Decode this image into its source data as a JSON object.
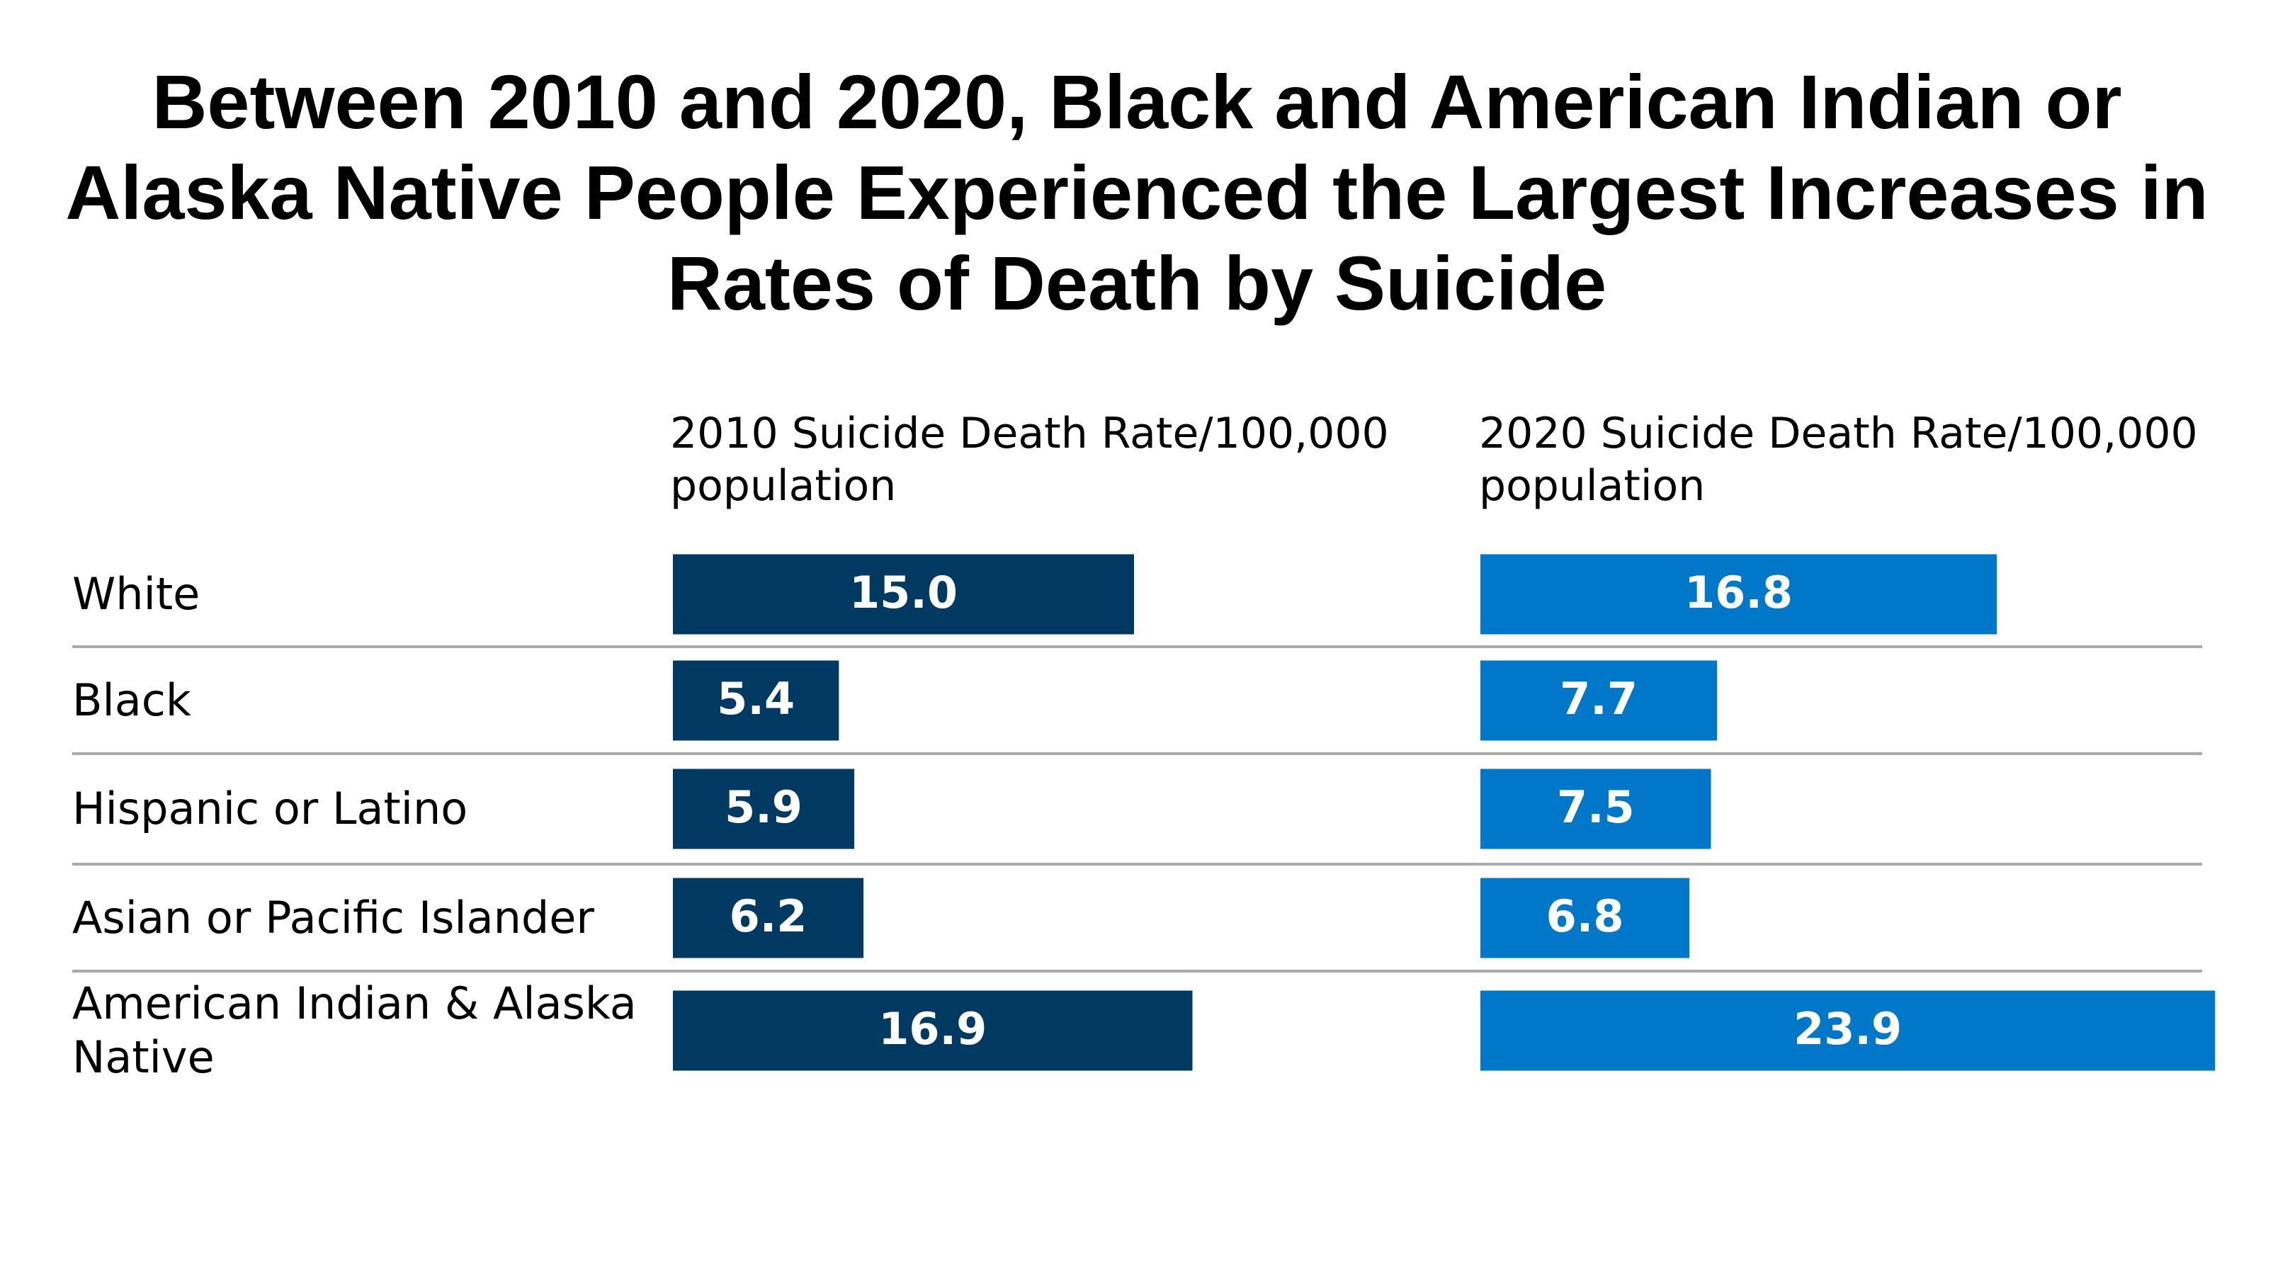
{
  "chart_data": {
    "type": "bar",
    "title": "Between 2010 and 2020, Black and American Indian or Alaska Native People Experienced the Largest Increases in Rates of Death by Suicide",
    "categories": [
      "White",
      "Black",
      "Hispanic or Latino",
      "Asian or Pacific Islander",
      "American Indian & Alaska Native"
    ],
    "series": [
      {
        "name": "2010 Suicide Death Rate/100,000 population",
        "color": "#003a63",
        "values": [
          15.0,
          5.4,
          5.9,
          6.2,
          16.9
        ],
        "value_labels": [
          "15.0",
          "5.4",
          "5.9",
          "6.2",
          "16.9"
        ]
      },
      {
        "name": "2020 Suicide Death Rate/100,000 population",
        "color": "#0077c8",
        "values": [
          16.8,
          7.7,
          7.5,
          6.8,
          23.9
        ],
        "value_labels": [
          "16.8",
          "7.7",
          "7.5",
          "6.8",
          "23.9"
        ]
      }
    ]
  }
}
